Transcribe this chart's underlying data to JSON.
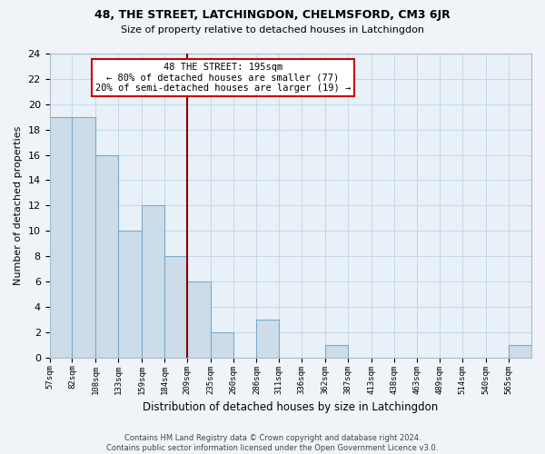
{
  "title1": "48, THE STREET, LATCHINGDON, CHELMSFORD, CM3 6JR",
  "title2": "Size of property relative to detached houses in Latchingdon",
  "xlabel": "Distribution of detached houses by size in Latchingdon",
  "ylabel": "Number of detached properties",
  "bin_labels": [
    "57sqm",
    "82sqm",
    "108sqm",
    "133sqm",
    "159sqm",
    "184sqm",
    "209sqm",
    "235sqm",
    "260sqm",
    "286sqm",
    "311sqm",
    "336sqm",
    "362sqm",
    "387sqm",
    "413sqm",
    "438sqm",
    "463sqm",
    "489sqm",
    "514sqm",
    "540sqm",
    "565sqm"
  ],
  "bin_values": [
    19,
    19,
    16,
    10,
    12,
    8,
    6,
    2,
    0,
    3,
    0,
    0,
    1,
    0,
    0,
    0,
    0,
    0,
    0,
    0,
    1
  ],
  "bar_color": "#ccdce9",
  "bar_edge_color": "#7baac8",
  "property_label": "48 THE STREET: 195sqm",
  "annotation_line1": "← 80% of detached houses are smaller (77)",
  "annotation_line2": "20% of semi-detached houses are larger (19) →",
  "annotation_box_color": "#ffffff",
  "annotation_box_edge": "#cc0000",
  "ref_line_color": "#8b0000",
  "ylim": [
    0,
    24
  ],
  "yticks": [
    0,
    2,
    4,
    6,
    8,
    10,
    12,
    14,
    16,
    18,
    20,
    22,
    24
  ],
  "footer1": "Contains HM Land Registry data © Crown copyright and database right 2024.",
  "footer2": "Contains public sector information licensed under the Open Government Licence v3.0.",
  "bin_edges": [
    57,
    82,
    108,
    133,
    159,
    184,
    209,
    235,
    260,
    286,
    311,
    336,
    362,
    387,
    413,
    438,
    463,
    489,
    514,
    540,
    565,
    590
  ],
  "bg_color": "#e8f0f8",
  "grid_color": "#c8d8e8"
}
